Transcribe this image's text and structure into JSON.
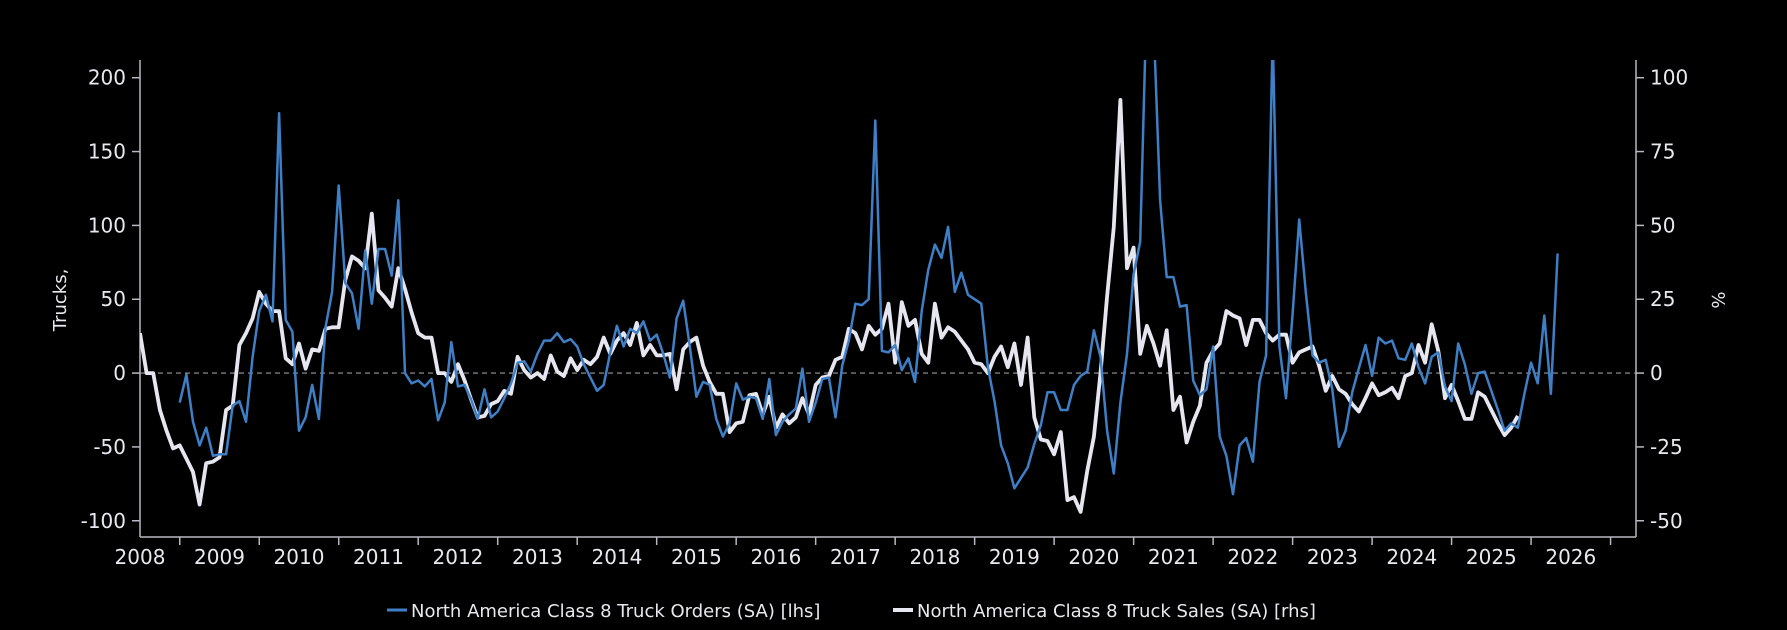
{
  "chart_data": {
    "type": "line",
    "title": "",
    "ylabel_left": "Trucks,",
    "ylabel_right": "%",
    "xlim": [
      2008.0,
      2026.82
    ],
    "ylim_left": [
      -111,
      212
    ],
    "ylim_right": [
      -55.5,
      106
    ],
    "x_ticks": [
      "2008",
      "2009",
      "2010",
      "2011",
      "2012",
      "2013",
      "2014",
      "2015",
      "2016",
      "2017",
      "2018",
      "2019",
      "2020",
      "2021",
      "2022",
      "2023",
      "2024",
      "2025",
      "2026"
    ],
    "y_ticks_left": [
      200,
      150,
      100,
      50,
      0,
      -50,
      -100
    ],
    "y_ticks_right": [
      100,
      75,
      50,
      25,
      0,
      -25,
      -50
    ],
    "zero_line": "dashed",
    "grid": false,
    "legend_position": "bottom-center",
    "frequency": "monthly",
    "series": [
      {
        "name": "North America Class 8 Truck Orders (SA) [lhs]",
        "axis": "left",
        "color": "#3f7fc6",
        "start": "2008-07",
        "values": [
          -20,
          -1,
          -33,
          -49,
          -37,
          -56,
          -55,
          -55,
          -22,
          -19,
          -33,
          11,
          42,
          53,
          35,
          176,
          36,
          28,
          -39,
          -30,
          -8,
          -31,
          31,
          55,
          127,
          61,
          54,
          30,
          83,
          47,
          84,
          84,
          66,
          117,
          0,
          -7,
          -5,
          -9,
          -4,
          -32,
          -20,
          21,
          -9,
          -8,
          -18,
          -31,
          -11,
          -30,
          -26,
          -17,
          -7,
          7,
          8,
          1,
          13,
          22,
          22,
          27,
          21,
          23,
          18,
          6,
          -3,
          -12,
          -8,
          14,
          32,
          18,
          30,
          27,
          35,
          22,
          26,
          13,
          -3,
          37,
          49,
          18,
          -16,
          -6,
          -8,
          -31,
          -43,
          -34,
          -7,
          -18,
          -16,
          -17,
          -31,
          -4,
          -42,
          -33,
          -28,
          -24,
          3,
          -33,
          -20,
          -4,
          -3,
          -30,
          5,
          22,
          47,
          46,
          50,
          171,
          15,
          14,
          19,
          2,
          10,
          -6,
          42,
          70,
          87,
          78,
          99,
          55,
          68,
          53,
          50,
          47,
          4,
          -19,
          -49,
          -61,
          -78,
          -71,
          -64,
          -48,
          -35,
          -13,
          -13,
          -25,
          -25,
          -8,
          -2,
          1,
          29,
          11,
          -39,
          -68,
          -20,
          13,
          67,
          89,
          260,
          240,
          117,
          65,
          65,
          45,
          46,
          -5,
          -15,
          -11,
          18,
          -43,
          -56,
          -82,
          -49,
          -44,
          -60,
          -6,
          12,
          230,
          18,
          -17,
          40,
          104,
          54,
          12,
          7,
          9,
          -11,
          -50,
          -39,
          -13,
          3,
          19,
          -2,
          24,
          20,
          22,
          10,
          9,
          20,
          4,
          -7,
          11,
          14,
          -9,
          -19,
          20,
          6,
          -14,
          0,
          1,
          -12,
          -25,
          -39,
          -34,
          -37,
          -14,
          7,
          -7,
          39,
          -14,
          81
        ]
      },
      {
        "name": "North America Class 8 Truck Sales (SA) [rhs]",
        "axis": "right",
        "color": "#e6e6f0",
        "start": "2008-01",
        "values": [
          13.5,
          0,
          0,
          -12.5,
          -19.5,
          -25.5,
          -24.5,
          -29,
          -33.5,
          -44.5,
          -30.5,
          -30,
          -28.5,
          -12.5,
          -11,
          9.5,
          13.5,
          18.5,
          27.5,
          23.5,
          21,
          21,
          5,
          3,
          10,
          1.5,
          8,
          7.5,
          15,
          15.5,
          15.5,
          31.5,
          39.5,
          38,
          35.5,
          54,
          28,
          25.5,
          22.5,
          35.5,
          28.5,
          20.5,
          13.5,
          12,
          12,
          0,
          0,
          -3,
          3,
          -2.5,
          -9,
          -15,
          -14.5,
          -10.5,
          -9.5,
          -6,
          -7,
          5.5,
          1,
          -1.5,
          0,
          -2,
          6,
          0.5,
          -1,
          5,
          1,
          4.5,
          3,
          5.5,
          12,
          6.5,
          11,
          13.5,
          9.5,
          17,
          6,
          9.5,
          6,
          6,
          6.5,
          -5.5,
          8,
          10.5,
          12,
          2.5,
          -3,
          -7,
          -7,
          -20,
          -17,
          -16.5,
          -7.5,
          -7,
          -14,
          -8,
          -18.5,
          -14,
          -17,
          -15,
          -8.5,
          -14,
          -4,
          -1.5,
          -1,
          4.5,
          5.5,
          15,
          13.5,
          8,
          16,
          13,
          15,
          23.5,
          3.5,
          24,
          16,
          18,
          6.5,
          3.5,
          23.5,
          12,
          15.5,
          14,
          11,
          8,
          3.5,
          3,
          0,
          5.5,
          9,
          2,
          10,
          -4,
          12,
          -15,
          -22.5,
          -23,
          -27.5,
          -20,
          -43,
          -42,
          -47,
          -33,
          -21.5,
          0,
          26,
          49.5,
          92.5,
          35.5,
          42.5,
          6.5,
          16,
          10,
          2.5,
          14.5,
          -12.5,
          -8,
          -23.5,
          -16.5,
          -11,
          3.5,
          7.5,
          10,
          21,
          19.5,
          18.5,
          9.5,
          18,
          18,
          13.5,
          11,
          13,
          13,
          3.5,
          7,
          8,
          9,
          2.5,
          -6,
          -1,
          -5.5,
          -7,
          -10.5,
          -13,
          -8.5,
          -3.5,
          -7.5,
          -6.5,
          -5,
          -8.5,
          -1,
          0,
          9.5,
          3.5,
          16.5,
          7.5,
          -8.5,
          -4,
          -9.5,
          -15.5,
          -15.5,
          -6.5,
          -8,
          -12.5,
          -17,
          -21,
          -18.5,
          -14.5
        ]
      }
    ]
  }
}
